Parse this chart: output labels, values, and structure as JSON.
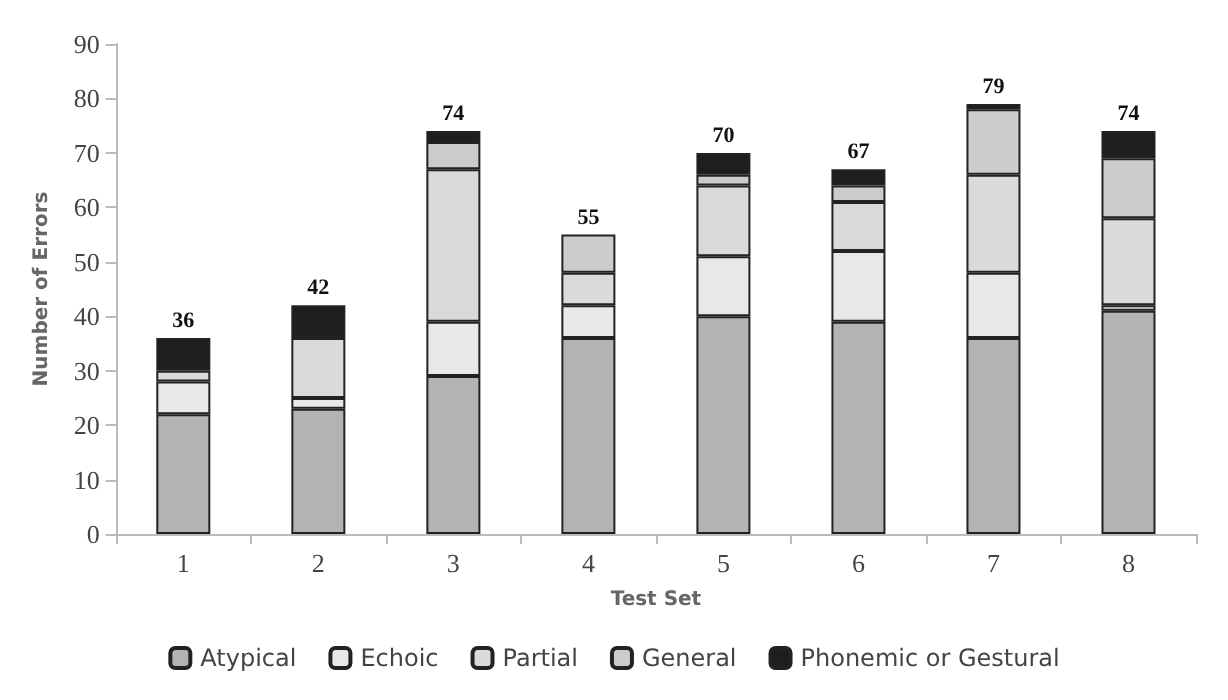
{
  "chart_data": {
    "type": "bar",
    "stacked": true,
    "xlabel": "Test Set",
    "ylabel": "Number of Errors",
    "categories": [
      "1",
      "2",
      "3",
      "4",
      "5",
      "6",
      "7",
      "8"
    ],
    "series": [
      {
        "name": "Atypical",
        "color": "#b3b3b3",
        "values": [
          22,
          23,
          29,
          36,
          40,
          39,
          36,
          41
        ]
      },
      {
        "name": "Echoic",
        "color": "#e8e8e8",
        "values": [
          6,
          2,
          10,
          6,
          11,
          13,
          12,
          1
        ]
      },
      {
        "name": "Partial",
        "color": "#dadada",
        "values": [
          2,
          11,
          28,
          6,
          13,
          9,
          18,
          16
        ]
      },
      {
        "name": "General",
        "color": "#cccccc",
        "values": [
          null,
          null,
          5,
          7,
          2,
          3,
          12,
          11
        ]
      },
      {
        "name": "Phonemic or Gestural",
        "color": "#1e1e1e",
        "values": [
          6,
          6,
          2,
          null,
          4,
          3,
          1,
          5
        ]
      }
    ],
    "totals": [
      "36",
      "42",
      "74",
      "55",
      "70",
      "67",
      "79",
      "74"
    ],
    "ylim": [
      0,
      90
    ],
    "yticks": [
      0,
      10,
      20,
      30,
      40,
      50,
      60,
      70,
      80,
      90
    ],
    "grid": false,
    "legend": "bottom"
  }
}
